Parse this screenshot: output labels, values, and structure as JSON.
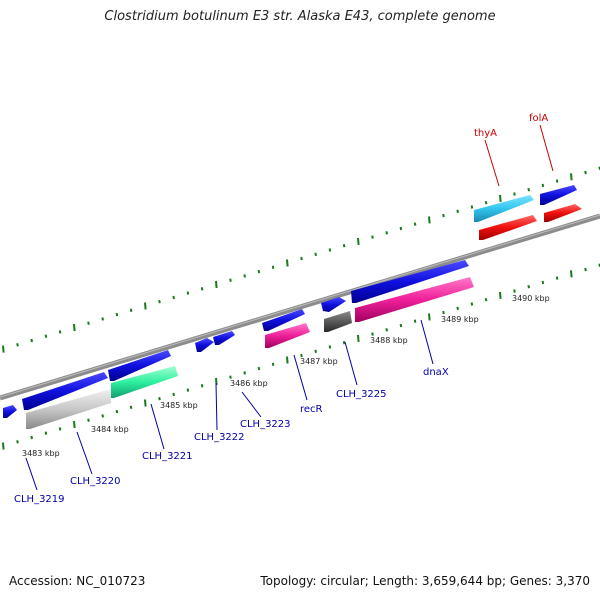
{
  "title": "Clostridium botulinum E3 str. Alaska E43, complete genome",
  "footer": {
    "accession": "Accession: NC_010723",
    "summary": "Topology: circular; Length: 3,659,644 bp; Genes: 3,370"
  },
  "kbp_labels": [
    "3483 kbp",
    "3484 kbp",
    "3485 kbp",
    "3486 kbp",
    "3487 kbp",
    "3488 kbp",
    "3489 kbp",
    "3490 kbp"
  ],
  "gene_labels": [
    "thyA",
    "folA",
    "CLH_3219",
    "CLH_3220",
    "CLH_3221",
    "CLH_3222",
    "CLH_3223",
    "recR",
    "CLH_3225",
    "dnaX"
  ],
  "colors": {
    "forward_strand": "#1010e0",
    "thyA": "#33c6f0",
    "folA": "#f01010",
    "pink_genes": "#f0209a",
    "green_gene": "#2ef0a0",
    "grey_gene": "#c8c8c8",
    "dark_grey_gene": "#5a5a5a",
    "backbone": "#8c8c8c",
    "ticks": "#1a7a1a",
    "label_red": "#cc0000",
    "label_blue": "#0000aa"
  }
}
